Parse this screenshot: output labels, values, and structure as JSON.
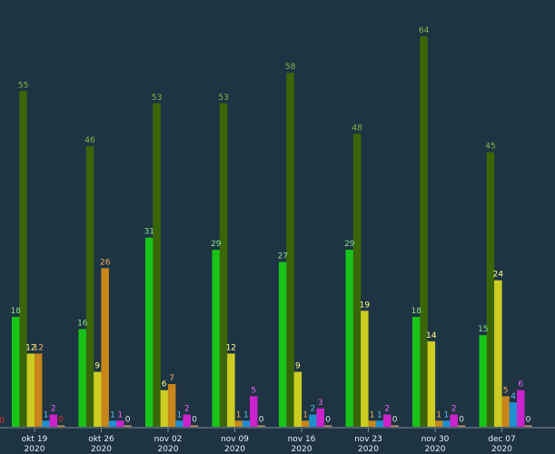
{
  "chart_data": {
    "type": "bar",
    "title": "",
    "xlabel": "",
    "ylabel": "",
    "ylim": [
      0,
      66
    ],
    "grid": false,
    "legend": "none",
    "categories": [
      {
        "week": "okt 19",
        "year": "2020"
      },
      {
        "week": "okt 26",
        "year": "2020"
      },
      {
        "week": "nov 02",
        "year": "2020"
      },
      {
        "week": "nov 09",
        "year": "2020"
      },
      {
        "week": "nov 16",
        "year": "2020"
      },
      {
        "week": "nov 23",
        "year": "2020"
      },
      {
        "week": "nov 30",
        "year": "2020"
      },
      {
        "week": "dec 07",
        "year": "2020"
      }
    ],
    "series": [
      {
        "color": "#18c418",
        "label_color": "#8de08d",
        "values": [
          18,
          16,
          31,
          29,
          27,
          29,
          18,
          15
        ]
      },
      {
        "color": "#3a6608",
        "label_color": "#7fb84a",
        "values": [
          55,
          46,
          53,
          53,
          58,
          48,
          64,
          45
        ]
      },
      {
        "color": "#cccc22",
        "label_color": "#ffff88",
        "values": [
          12,
          9,
          6,
          12,
          9,
          19,
          14,
          24
        ]
      },
      {
        "color": "#c8861a",
        "label_color": "#f0b060",
        "values": [
          12,
          26,
          7,
          1,
          1,
          1,
          1,
          5
        ]
      },
      {
        "color": "#1e8fcf",
        "label_color": "#5fbcf0",
        "values": [
          1,
          1,
          1,
          1,
          2,
          1,
          1,
          4
        ]
      },
      {
        "color": "#cc22cc",
        "label_color": "#ee66ee",
        "values": [
          2,
          1,
          2,
          5,
          3,
          2,
          2,
          6
        ]
      },
      {
        "color": "#c89060",
        "label_color": "#e0e0e0",
        "values": [
          0,
          0,
          0,
          0,
          0,
          0,
          0,
          0
        ]
      }
    ],
    "offscreen_label": {
      "value": "0",
      "color": "#e03030"
    },
    "zero_label_color": "#e03030"
  }
}
